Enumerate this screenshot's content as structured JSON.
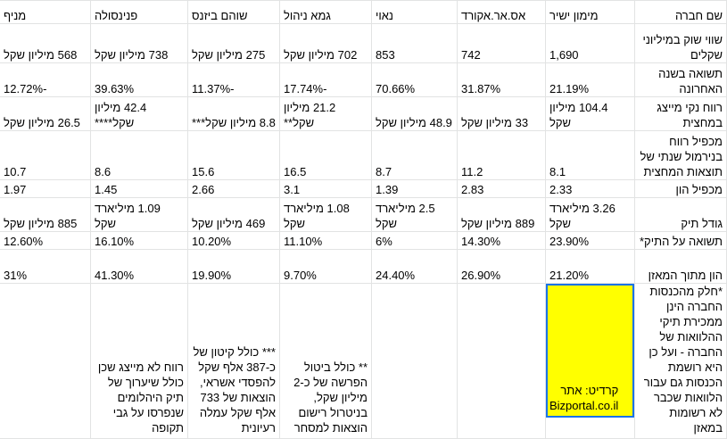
{
  "headers": [
    "שם חברה",
    "מימון ישיר",
    "אס.אר.אקורד",
    "נאוי",
    "גמא ניהול",
    "שוהם ביזנס",
    "פנינסולה",
    "מניף"
  ],
  "rows": [
    {
      "label": "שווי שוק במיליוני שקלים",
      "cells": [
        "1,690",
        "742",
        "853",
        "702 מיליון שקל",
        "275 מיליון שקל",
        "738 מיליון שקל",
        "568 מיליון שקל"
      ]
    },
    {
      "label": "תשואה בשנה האחרונה",
      "cells": [
        "21.19%",
        "31.87%",
        "70.66%",
        "-17.74%",
        "-11.37%",
        "39.63%",
        "-12.72%"
      ]
    },
    {
      "label": "רווח נקי מייצג במחצית",
      "cells": [
        "104.4 מיליון שקל",
        "33 מיליון שקל",
        "48.9 מיליון שקל",
        "21.2 מיליון שקל**",
        "8.8 מיליון שקל***",
        "42.4 מיליון שקל****",
        "26.5 מיליון שקל"
      ]
    },
    {
      "label": "מכפיל רווח בנירמול שנתי של תוצאות המחצית",
      "cells": [
        "8.1",
        "11.2",
        "8.7",
        "16.5",
        "15.6",
        "8.6",
        "10.7"
      ]
    },
    {
      "label": "מכפיל הון",
      "cells": [
        "2.33",
        "2.83",
        "1.39",
        "3.1",
        "2.66",
        "1.45",
        "1.97"
      ]
    },
    {
      "label": "גודל תיק",
      "cells": [
        "3.26 מיליארד שקל",
        "889 מיליון שקל",
        "2.5 מיליארד שקל",
        "1.08 מיליארד שקל",
        "469 מיליון שקל",
        "1.09 מיליארד שקל",
        "885 מיליון שקל"
      ]
    },
    {
      "label": "תשואה על התיק*",
      "cells": [
        "23.90%",
        "14.30%",
        "6%",
        "11.10%",
        "10.20%",
        "16.10%",
        "12.60%"
      ]
    },
    {
      "label": "הון מתוך המאזן",
      "cells": [
        "21.20%",
        "26.90%",
        "24.40%",
        "9.70%",
        "19.90%",
        "41.30%",
        "31%"
      ]
    }
  ],
  "notes": {
    "label": "*חלק מהכנסות החברה הינן ממכירת תיקי ההלוואות של החברה - ועל כן היא רושמת הכנסות גם עבור הלוואות שכבר לא רשומות במאזן",
    "credit_line1": "קרדיט: אתר",
    "credit_line2": "Bizportal.co.il",
    "gamma": "** כולל ביטול הפרשה של כ-2 מיליון שקל, בניטרול רישום הוצאות למסחר",
    "shoham": "*** כולל קיטון של כ-387 אלף שקל להפסדי אשראי, הוצאות של 733 אלף שקל עמלה רעיונית",
    "peninsula": "רווח לא מייצג שכן כולל שיערוך של תיק היהלומים שנפרסו על גבי תקופה",
    "manif": ""
  },
  "colors": {
    "grid": "#e2e3e3",
    "credit_bg": "#ffff00",
    "credit_border": "#1a73e8"
  }
}
